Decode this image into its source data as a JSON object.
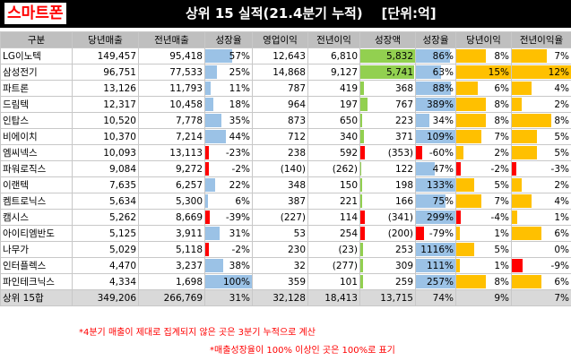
{
  "brand": "스마트폰",
  "title": "상위 15 실적(21.4분기 누적)    [단위:억]",
  "columns": [
    "구분",
    "당년매출",
    "전년매출",
    "성장율",
    "영업이익",
    "전년이익",
    "성장액",
    "성장율",
    "당년이익",
    "전년이익율"
  ],
  "colors": {
    "blue": "#9bc2e6",
    "green": "#92d050",
    "red": "#ff0000",
    "orange": "#ffc000"
  },
  "rows": [
    {
      "name": "LG이노텍",
      "rev": "149,457",
      "prev_rev": "95,418",
      "growth": "57%",
      "op": "12,643",
      "prev_op": "6,810",
      "amt": "5,832",
      "rate": "86%",
      "cur_margin": "8%",
      "prev_margin": "7%"
    },
    {
      "name": "삼성전기",
      "rev": "96,751",
      "prev_rev": "77,533",
      "growth": "25%",
      "op": "14,868",
      "prev_op": "9,127",
      "amt": "5,741",
      "rate": "63%",
      "cur_margin": "15%",
      "prev_margin": "12%"
    },
    {
      "name": "파트론",
      "rev": "13,126",
      "prev_rev": "11,793",
      "growth": "11%",
      "op": "787",
      "prev_op": "419",
      "amt": "368",
      "rate": "88%",
      "cur_margin": "6%",
      "prev_margin": "4%"
    },
    {
      "name": "드림텍",
      "rev": "12,317",
      "prev_rev": "10,458",
      "growth": "18%",
      "op": "964",
      "prev_op": "197",
      "amt": "767",
      "rate": "389%",
      "cur_margin": "8%",
      "prev_margin": "2%"
    },
    {
      "name": "인탑스",
      "rev": "10,520",
      "prev_rev": "7,778",
      "growth": "35%",
      "op": "873",
      "prev_op": "650",
      "amt": "223",
      "rate": "34%",
      "cur_margin": "8%",
      "prev_margin": "8%"
    },
    {
      "name": "비에이치",
      "rev": "10,370",
      "prev_rev": "7,214",
      "growth": "44%",
      "op": "712",
      "prev_op": "340",
      "amt": "371",
      "rate": "109%",
      "cur_margin": "7%",
      "prev_margin": "5%"
    },
    {
      "name": "엠씨넥스",
      "rev": "10,093",
      "prev_rev": "13,113",
      "growth": "-23%",
      "op": "238",
      "prev_op": "592",
      "amt": "(353)",
      "rate": "-60%",
      "cur_margin": "2%",
      "prev_margin": "5%"
    },
    {
      "name": "파워로직스",
      "rev": "9,084",
      "prev_rev": "9,272",
      "growth": "-2%",
      "op": "(140)",
      "prev_op": "(262)",
      "amt": "122",
      "rate": "47%",
      "cur_margin": "-2%",
      "prev_margin": "-3%"
    },
    {
      "name": "이랜텍",
      "rev": "7,635",
      "prev_rev": "6,257",
      "growth": "22%",
      "op": "348",
      "prev_op": "150",
      "amt": "198",
      "rate": "133%",
      "cur_margin": "5%",
      "prev_margin": "2%"
    },
    {
      "name": "켐트로닉스",
      "rev": "5,634",
      "prev_rev": "5,300",
      "growth": "6%",
      "op": "387",
      "prev_op": "221",
      "amt": "166",
      "rate": "75%",
      "cur_margin": "7%",
      "prev_margin": "4%"
    },
    {
      "name": "캠시스",
      "rev": "5,262",
      "prev_rev": "8,669",
      "growth": "-39%",
      "op": "(227)",
      "prev_op": "114",
      "amt": "(341)",
      "rate": "299%",
      "cur_margin": "-4%",
      "prev_margin": "1%"
    },
    {
      "name": "아이티엠반도",
      "rev": "5,125",
      "prev_rev": "3,911",
      "growth": "31%",
      "op": "53",
      "prev_op": "254",
      "amt": "(200)",
      "rate": "-79%",
      "cur_margin": "1%",
      "prev_margin": "6%"
    },
    {
      "name": "나무가",
      "rev": "5,029",
      "prev_rev": "5,118",
      "growth": "-2%",
      "op": "230",
      "prev_op": "(23)",
      "amt": "253",
      "rate": "1116%",
      "cur_margin": "5%",
      "prev_margin": "0%"
    },
    {
      "name": "인터플렉스",
      "rev": "4,470",
      "prev_rev": "3,237",
      "growth": "38%",
      "op": "32",
      "prev_op": "(277)",
      "amt": "309",
      "rate": "111%",
      "cur_margin": "1%",
      "prev_margin": "-9%"
    },
    {
      "name": "파인테크닉스",
      "rev": "4,334",
      "prev_rev": "1,698",
      "growth": "100%",
      "op": "359",
      "prev_op": "101",
      "amt": "259",
      "rate": "257%",
      "cur_margin": "8%",
      "prev_margin": "6%"
    }
  ],
  "total": {
    "name": "상위 15합",
    "rev": "349,206",
    "prev_rev": "266,769",
    "growth": "31%",
    "op": "32,128",
    "prev_op": "18,413",
    "amt": "13,715",
    "rate": "74%",
    "cur_margin": "9%",
    "prev_margin": "7%"
  },
  "bars": {
    "growth": [
      0.57,
      0.25,
      0.11,
      0.18,
      0.35,
      0.44,
      -0.23,
      -0.02,
      0.22,
      0.06,
      -0.39,
      0.31,
      -0.02,
      0.38,
      1.0
    ],
    "amt": [
      5832,
      5741,
      368,
      767,
      223,
      371,
      -353,
      122,
      198,
      166,
      -341,
      -200,
      253,
      309,
      259
    ],
    "rate": [
      0.86,
      0.63,
      0.88,
      1.0,
      0.34,
      1.0,
      -0.6,
      0.47,
      1.0,
      0.75,
      1.0,
      -0.79,
      1.0,
      1.0,
      1.0
    ],
    "cur_margin": [
      0.08,
      0.15,
      0.06,
      0.08,
      0.08,
      0.07,
      0.02,
      -0.02,
      0.05,
      0.07,
      -0.04,
      0.01,
      0.05,
      0.01,
      0.08
    ],
    "prev_margin": [
      0.07,
      0.12,
      0.04,
      0.02,
      0.08,
      0.05,
      0.05,
      -0.03,
      0.02,
      0.04,
      0.01,
      0.06,
      0.0,
      -0.09,
      0.06
    ]
  },
  "notes": {
    "note1": "*4분기 매출이 제대로 집계되지 않은 곳은 3분기 누적으로 계산",
    "note2": "*매출성장율이 100% 이상인 곳은 100%로 표기"
  }
}
